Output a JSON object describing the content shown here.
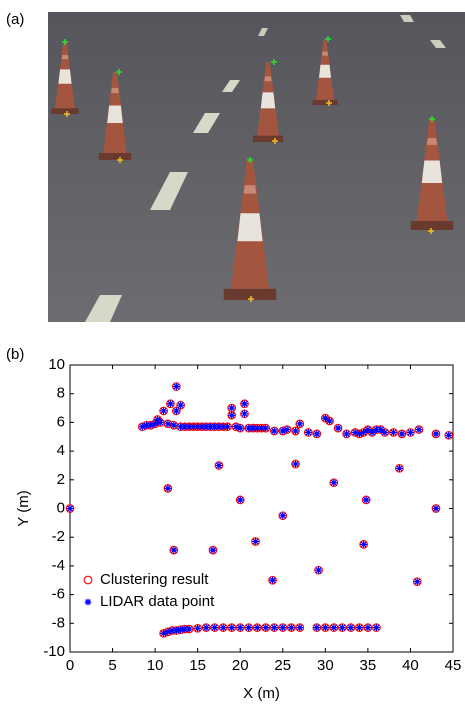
{
  "panel_a_label": "(a)",
  "panel_b_label": "(b)",
  "chart_data": {
    "type": "scatter",
    "x_label": "X (m)",
    "y_label": "Y (m)",
    "xlim": [
      0,
      45
    ],
    "ylim": [
      -10,
      10
    ],
    "xticks": [
      0,
      5,
      10,
      15,
      20,
      25,
      30,
      35,
      40,
      45
    ],
    "yticks": [
      -10,
      -8,
      -6,
      -4,
      -2,
      0,
      2,
      4,
      6,
      8,
      10
    ],
    "legend": "lower left",
    "x": [
      0,
      8.5,
      9,
      9.5,
      10,
      10.3,
      10.6,
      11,
      11.5,
      11.8,
      12.2,
      12.5,
      12.5,
      13,
      13,
      13.5,
      14,
      14.5,
      15,
      15.5,
      16,
      16.5,
      17,
      17.5,
      18,
      18.5,
      19,
      19,
      19.5,
      20,
      20.5,
      20.5,
      21,
      21.5,
      22,
      22.5,
      23,
      24,
      25,
      25.5,
      26.5,
      27,
      28,
      29,
      30,
      30.5,
      31.5,
      32.5,
      33.5,
      34,
      34.5,
      35,
      35.5,
      36,
      36.5,
      37,
      38,
      39,
      40,
      41,
      43,
      44.5,
      11.5,
      12.2,
      17.5,
      16.8,
      20,
      21.8,
      23.8,
      25,
      26.5,
      29.2,
      31,
      34.5,
      34.8,
      38.7,
      40.8,
      43,
      11,
      11.5,
      12,
      12.5,
      13,
      13.5,
      14,
      15,
      16,
      17,
      18,
      19,
      20,
      21,
      22,
      23,
      24,
      25,
      26,
      27,
      29,
      30,
      31,
      32,
      33,
      34,
      35,
      36
    ],
    "series": [
      {
        "name": "Clustering result",
        "color": "#ff0000",
        "marker": "circle",
        "values": [
          0,
          5.7,
          5.8,
          5.8,
          5.9,
          6.2,
          6.0,
          6.8,
          5.9,
          7.3,
          5.8,
          8.5,
          6.8,
          5.7,
          7.2,
          5.7,
          5.7,
          5.7,
          5.7,
          5.7,
          5.7,
          5.7,
          5.7,
          5.7,
          5.7,
          5.7,
          6.5,
          7,
          5.7,
          5.6,
          7.3,
          6.6,
          5.6,
          5.6,
          5.6,
          5.6,
          5.6,
          5.4,
          5.4,
          5.5,
          5.4,
          5.9,
          5.3,
          5.2,
          6.3,
          6.1,
          5.6,
          5.2,
          5.3,
          5.2,
          5.3,
          5.5,
          5.3,
          5.5,
          5.5,
          5.3,
          5.3,
          5.2,
          5.3,
          5.5,
          5.2,
          5.1,
          1.4,
          -2.9,
          3.0,
          -2.9,
          0.6,
          -2.3,
          -5,
          -0.5,
          3.1,
          -4.3,
          1.8,
          -2.5,
          0.6,
          2.8,
          -5.1,
          0,
          -8.7,
          -8.6,
          -8.5,
          -8.5,
          -8.45,
          -8.4,
          -8.4,
          -8.35,
          -8.3,
          -8.3,
          -8.3,
          -8.3,
          -8.3,
          -8.3,
          -8.3,
          -8.3,
          -8.3,
          -8.3,
          -8.3,
          -8.3,
          -8.3,
          -8.3,
          -8.3,
          -8.3,
          -8.3,
          -8.3,
          -8.3,
          -8.3
        ]
      },
      {
        "name": "LIDAR data point",
        "color": "#0000ff",
        "marker": "star",
        "values": [
          0,
          5.7,
          5.8,
          5.8,
          5.9,
          6.2,
          6.0,
          6.8,
          5.9,
          7.3,
          5.8,
          8.5,
          6.8,
          5.7,
          7.2,
          5.7,
          5.7,
          5.7,
          5.7,
          5.7,
          5.7,
          5.7,
          5.7,
          5.7,
          5.7,
          5.7,
          6.5,
          7,
          5.7,
          5.6,
          7.3,
          6.6,
          5.6,
          5.6,
          5.6,
          5.6,
          5.6,
          5.4,
          5.4,
          5.5,
          5.4,
          5.9,
          5.3,
          5.2,
          6.3,
          6.1,
          5.6,
          5.2,
          5.3,
          5.2,
          5.3,
          5.5,
          5.3,
          5.5,
          5.5,
          5.3,
          5.3,
          5.2,
          5.3,
          5.5,
          5.2,
          5.1,
          1.4,
          -2.9,
          3.0,
          -2.9,
          0.6,
          -2.3,
          -5,
          -0.5,
          3.1,
          -4.3,
          1.8,
          -2.5,
          0.6,
          2.8,
          -5.1,
          0,
          -8.7,
          -8.6,
          -8.5,
          -8.5,
          -8.45,
          -8.4,
          -8.4,
          -8.35,
          -8.3,
          -8.3,
          -8.3,
          -8.3,
          -8.3,
          -8.3,
          -8.3,
          -8.3,
          -8.3,
          -8.3,
          -8.3,
          -8.3,
          -8.3,
          -8.3,
          -8.3,
          -8.3,
          -8.3,
          -8.3,
          -8.3,
          -8.3
        ]
      }
    ]
  }
}
